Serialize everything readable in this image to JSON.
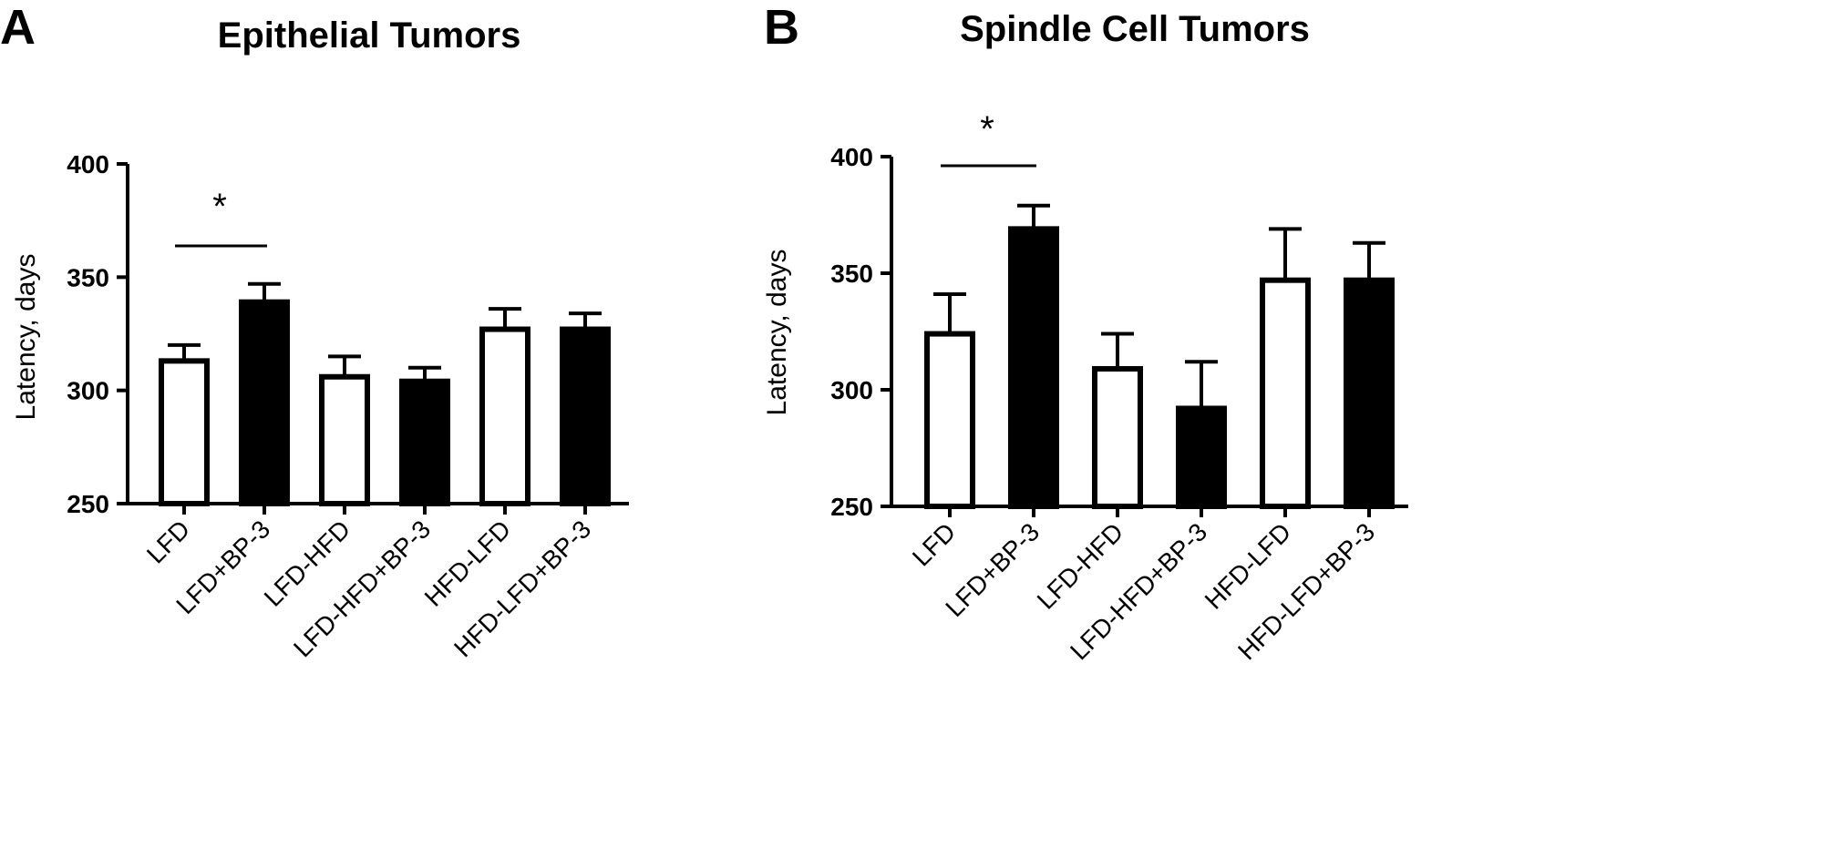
{
  "chart_data": [
    {
      "type": "bar",
      "panel_label": "A",
      "title": "Epithelial Tumors",
      "xlabel": "",
      "ylabel": "Latency, days",
      "ylim": [
        250,
        400
      ],
      "yticks": [
        250,
        300,
        350,
        400
      ],
      "categories": [
        "LFD",
        "LFD+BP-3",
        "LFD-HFD",
        "LFD-HFD+BP-3",
        "HFD-LFD",
        "HFD-LFD+BP-3"
      ],
      "values": [
        313,
        339,
        306,
        304,
        327,
        327
      ],
      "error_upper": [
        320,
        347,
        315,
        310,
        336,
        334
      ],
      "fill": [
        "#ffffff",
        "#000000",
        "#ffffff",
        "#000000",
        "#ffffff",
        "#000000"
      ],
      "significance": [
        {
          "from": "LFD",
          "to": "LFD+BP-3",
          "label": "*"
        }
      ],
      "grid": false
    },
    {
      "type": "bar",
      "panel_label": "B",
      "title": "Spindle Cell Tumors",
      "xlabel": "",
      "ylabel": "Latency, days",
      "ylim": [
        250,
        400
      ],
      "yticks": [
        250,
        300,
        350,
        400
      ],
      "categories": [
        "LFD",
        "LFD+BP-3",
        "LFD-HFD",
        "LFD-HFD+BP-3",
        "HFD-LFD",
        "HFD-LFD+BP-3"
      ],
      "values": [
        324,
        369,
        309,
        292,
        347,
        347
      ],
      "error_upper": [
        341,
        379,
        324,
        312,
        369,
        363
      ],
      "fill": [
        "#ffffff",
        "#000000",
        "#ffffff",
        "#000000",
        "#ffffff",
        "#000000"
      ],
      "significance": [
        {
          "from": "LFD",
          "to": "LFD+BP-3",
          "label": "*"
        }
      ],
      "grid": false
    }
  ]
}
